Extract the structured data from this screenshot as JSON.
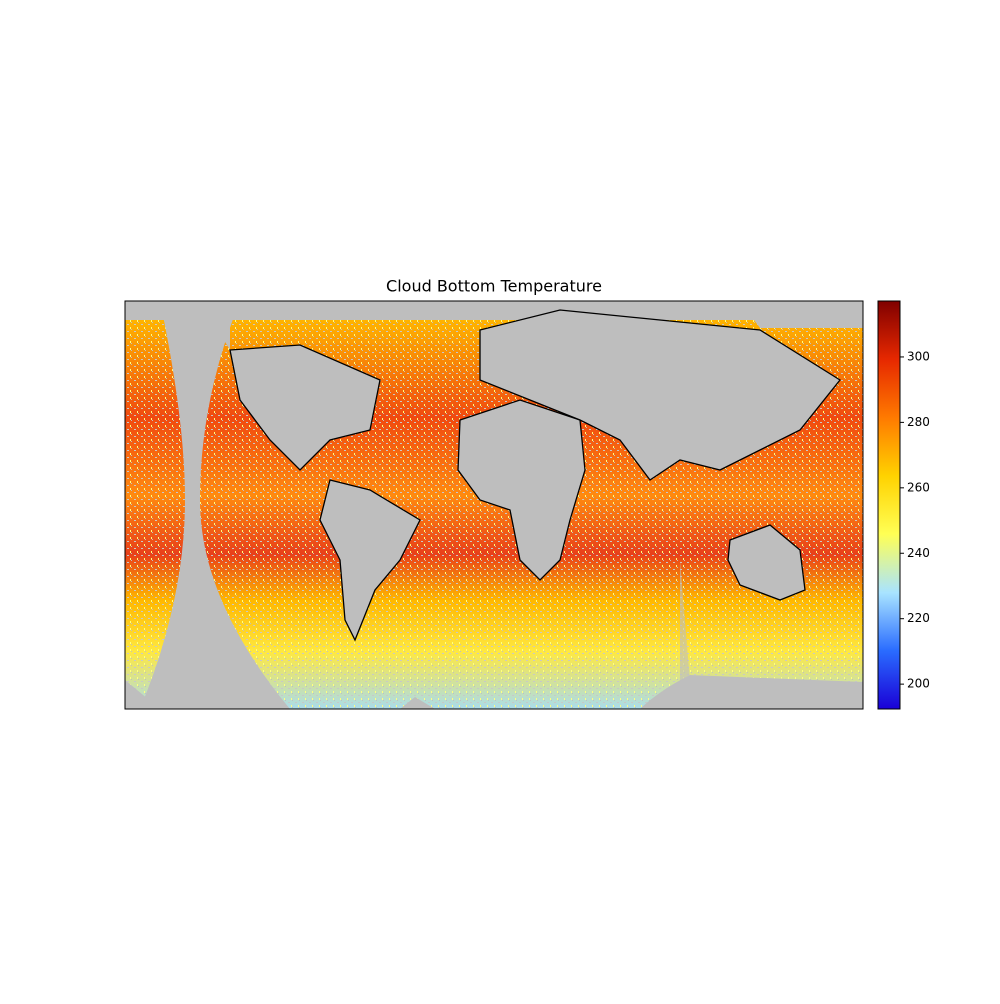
{
  "chart_data": {
    "type": "map",
    "title": "Cloud Bottom Temperature",
    "clim": [
      192.4,
      317.1
    ],
    "cticks": [
      200,
      220,
      240,
      260,
      280,
      300
    ],
    "colormap": [
      "#1a00d6",
      "#2a6cff",
      "#a9e4ff",
      "#ffff55",
      "#ffd200",
      "#ff7a00",
      "#e62800",
      "#800000"
    ]
  }
}
